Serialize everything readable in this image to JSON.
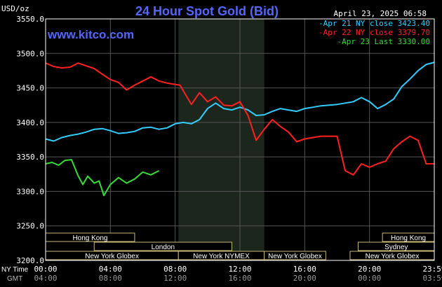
{
  "header": {
    "unit_label": "USD/oz",
    "title": "24 Hour Spot Gold (Bid)",
    "timestamp": "April 23, 2025 06:58",
    "watermark": "www.kitco.com"
  },
  "footer": {
    "ny_time_label": "NY Time",
    "gmt_label": "GMT",
    "ny_ticks": [
      "00:00",
      "04:00",
      "08:00",
      "12:00",
      "16:00",
      "20:00",
      "23:59"
    ],
    "gmt_ticks": [
      "04:00",
      "08:00",
      "12:00",
      "16:00",
      "20:00",
      "00:00",
      "03:59"
    ]
  },
  "sessions": [
    {
      "label": "Hong Kong",
      "start": 0,
      "end": 5.5,
      "row": 0
    },
    {
      "label": "Hong Kong",
      "start": 20.8,
      "end": 24,
      "row": 0
    },
    {
      "label": "London",
      "start": 3,
      "end": 11.5,
      "row": 1
    },
    {
      "label": "Sydney",
      "start": 19.3,
      "end": 24,
      "row": 1
    },
    {
      "label": "New York Globex",
      "start": 0,
      "end": 8.2,
      "row": 2
    },
    {
      "label": "New York NYMEX",
      "start": 8.2,
      "end": 13.5,
      "row": 2
    },
    {
      "label": "New York Globex",
      "start": 13.5,
      "end": 17.3,
      "row": 2
    },
    {
      "label": "New York Globex",
      "start": 18.8,
      "end": 24,
      "row": 2
    }
  ],
  "chart_data": {
    "type": "line",
    "title": "24 Hour Spot Gold (Bid)",
    "ylabel": "USD/oz",
    "ylim": [
      3200,
      3550
    ],
    "yticks": [
      "3550.0",
      "3500.0",
      "3450.0",
      "3400.0",
      "3350.0",
      "3300.0",
      "3250.0",
      "3200.0"
    ],
    "xlim": [
      0,
      24
    ],
    "highlight_band": [
      8.2,
      13.5
    ],
    "legend_position": "top-right",
    "series": [
      {
        "name": "Apr 21 NY close 3423.40",
        "color": "#33ccff",
        "x": [
          0,
          0.5,
          1,
          1.5,
          2,
          2.5,
          3,
          3.5,
          4,
          4.5,
          5,
          5.5,
          6,
          6.5,
          7,
          7.5,
          8,
          8.5,
          9,
          9.5,
          10,
          10.5,
          11,
          11.5,
          12,
          12.5,
          13,
          13.5,
          14,
          14.5,
          15,
          15.5,
          16,
          16.5,
          17,
          17.5,
          18,
          18.5,
          19,
          19.5,
          20,
          20.5,
          21,
          21.5,
          22,
          22.5,
          23,
          23.5,
          23.99
        ],
        "y": [
          3376,
          3373,
          3378,
          3381,
          3383,
          3386,
          3390,
          3391,
          3388,
          3384,
          3385,
          3387,
          3392,
          3393,
          3390,
          3392,
          3398,
          3400,
          3398,
          3404,
          3420,
          3428,
          3420,
          3418,
          3422,
          3418,
          3410,
          3411,
          3416,
          3420,
          3418,
          3416,
          3420,
          3422,
          3424,
          3425,
          3426,
          3428,
          3430,
          3436,
          3430,
          3420,
          3426,
          3434,
          3452,
          3463,
          3475,
          3484,
          3487
        ]
      },
      {
        "name": "Apr 22 NY close 3379.70",
        "color": "#ff2020",
        "x": [
          0,
          0.5,
          1,
          1.5,
          2,
          2.5,
          3,
          3.5,
          4,
          4.5,
          5,
          5.5,
          6,
          6.5,
          7,
          7.5,
          8,
          8.3,
          8.6,
          9,
          9.5,
          10,
          10.5,
          11,
          11.5,
          12,
          12.5,
          13,
          13.5,
          14,
          14.5,
          15,
          15.5,
          16,
          16.5,
          17,
          17.5,
          18,
          18.5,
          19,
          19.5,
          20,
          20.5,
          21,
          21.5,
          22,
          22.5,
          23,
          23.5,
          23.99
        ],
        "y": [
          3486,
          3481,
          3479,
          3480,
          3486,
          3482,
          3478,
          3470,
          3462,
          3458,
          3447,
          3454,
          3460,
          3466,
          3460,
          3457,
          3455,
          3454,
          3442,
          3426,
          3443,
          3430,
          3437,
          3425,
          3424,
          3430,
          3410,
          3374,
          3390,
          3404,
          3394,
          3386,
          3372,
          3376,
          3378,
          3380,
          3380,
          3380,
          3330,
          3324,
          3340,
          3335,
          3340,
          3344,
          3362,
          3372,
          3380,
          3374,
          3340,
          3340
        ]
      },
      {
        "name": "Apr 23 Last 3330.00",
        "color": "#33dd33",
        "x": [
          0,
          0.4,
          0.8,
          1.2,
          1.6,
          2,
          2.3,
          2.6,
          3,
          3.3,
          3.6,
          4,
          4.5,
          5,
          5.5,
          6,
          6.5,
          7
        ],
        "y": [
          3340,
          3342,
          3338,
          3345,
          3346,
          3323,
          3310,
          3322,
          3312,
          3315,
          3294,
          3310,
          3320,
          3312,
          3318,
          3328,
          3324,
          3330
        ]
      }
    ]
  }
}
